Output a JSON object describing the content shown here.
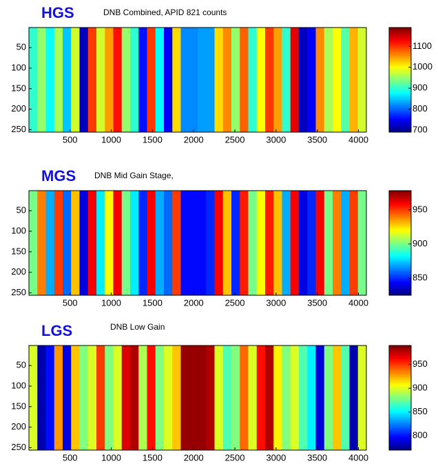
{
  "chart_data": [
    {
      "type": "heatmap",
      "label": "HGS",
      "title": "DNB Combined, APID 821 counts",
      "xlim": [
        1,
        4096
      ],
      "xticks": [
        500,
        1000,
        1500,
        2000,
        2500,
        3000,
        3500,
        4000
      ],
      "ylim": [
        1,
        256
      ],
      "yticks": [
        50,
        100,
        150,
        200,
        250
      ],
      "clim": [
        690,
        1190
      ],
      "cticks": [
        700,
        800,
        900,
        1000,
        1100
      ],
      "colormap": "jet",
      "values": [
        900,
        950,
        880,
        960,
        850,
        980,
        720,
        1100,
        980,
        1050,
        1120,
        950,
        900,
        760,
        1100,
        880,
        750,
        1020,
        820,
        820,
        830,
        830,
        1020,
        1060,
        950,
        1080,
        900,
        1000,
        1100,
        1050,
        900,
        1140,
        720,
        750,
        1060,
        960,
        1000,
        920,
        1040,
        980
      ]
    },
    {
      "type": "heatmap",
      "label": "MGS",
      "title": "DNB Mid Gain Stage,",
      "xlim": [
        1,
        4096
      ],
      "xticks": [
        500,
        1000,
        1500,
        2000,
        2500,
        3000,
        3500,
        4000
      ],
      "ylim": [
        1,
        256
      ],
      "yticks": [
        50,
        100,
        150,
        200,
        250
      ],
      "clim": [
        825,
        978
      ],
      "cticks": [
        850,
        900,
        950
      ],
      "colormap": "jet",
      "values": [
        900,
        940,
        870,
        950,
        860,
        930,
        840,
        960,
        880,
        920,
        960,
        900,
        880,
        850,
        960,
        870,
        860,
        950,
        845,
        845,
        845,
        850,
        960,
        930,
        850,
        955,
        900,
        920,
        955,
        930,
        870,
        960,
        840,
        850,
        960,
        900,
        940,
        870,
        950,
        900
      ]
    },
    {
      "type": "heatmap",
      "label": "LGS",
      "title": "DNB Low Gain",
      "xlim": [
        1,
        4096
      ],
      "xticks": [
        500,
        1000,
        1500,
        2000,
        2500,
        3000,
        3500,
        4000
      ],
      "ylim": [
        1,
        256
      ],
      "yticks": [
        50,
        100,
        150,
        200,
        250
      ],
      "clim": [
        770,
        990
      ],
      "cticks": [
        800,
        850,
        900,
        950
      ],
      "colormap": "jet",
      "values": [
        900,
        780,
        800,
        930,
        790,
        920,
        880,
        900,
        950,
        880,
        900,
        970,
        980,
        890,
        960,
        880,
        900,
        920,
        985,
        985,
        985,
        980,
        900,
        870,
        880,
        940,
        900,
        960,
        980,
        910,
        880,
        900,
        870,
        850,
        790,
        880,
        920,
        870,
        780,
        900
      ]
    }
  ]
}
